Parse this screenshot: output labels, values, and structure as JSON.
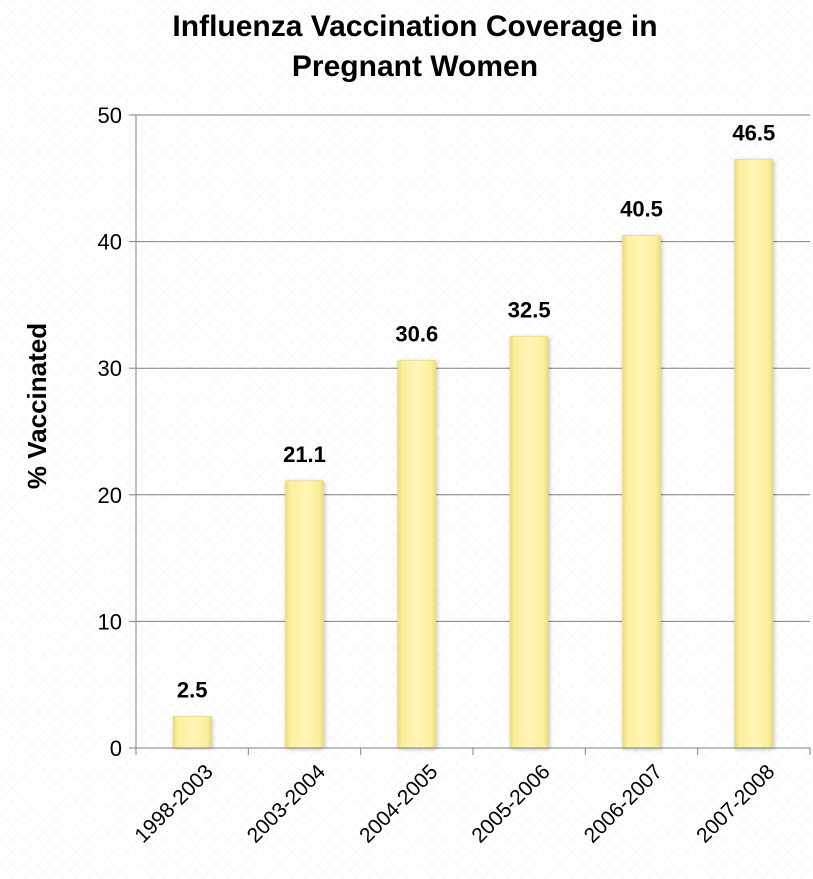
{
  "chart_data": {
    "type": "bar",
    "title": [
      "Influenza Vaccination Coverage in",
      "Pregnant Women"
    ],
    "xlabel": "",
    "ylabel": "% Vaccinated",
    "categories": [
      "1998-2003",
      "2003-2004",
      "2004-2005",
      "2005-2006",
      "2006-2007",
      "2007-2008"
    ],
    "values": [
      2.5,
      21.1,
      30.6,
      32.5,
      40.5,
      46.5
    ],
    "data_labels": [
      "2.5",
      "21.1",
      "30.6",
      "32.5",
      "40.5",
      "46.5"
    ],
    "ylim": [
      0,
      50
    ],
    "yticks": [
      "0",
      "10",
      "20",
      "30",
      "40",
      "50"
    ],
    "grid": true,
    "legend": "none",
    "colors": {
      "bar_fill": "#fbef99",
      "bar_highlight": "#fffbd9",
      "bar_shadow": "#e6d97a",
      "gridline": "#808080",
      "axis": "#808080"
    }
  }
}
